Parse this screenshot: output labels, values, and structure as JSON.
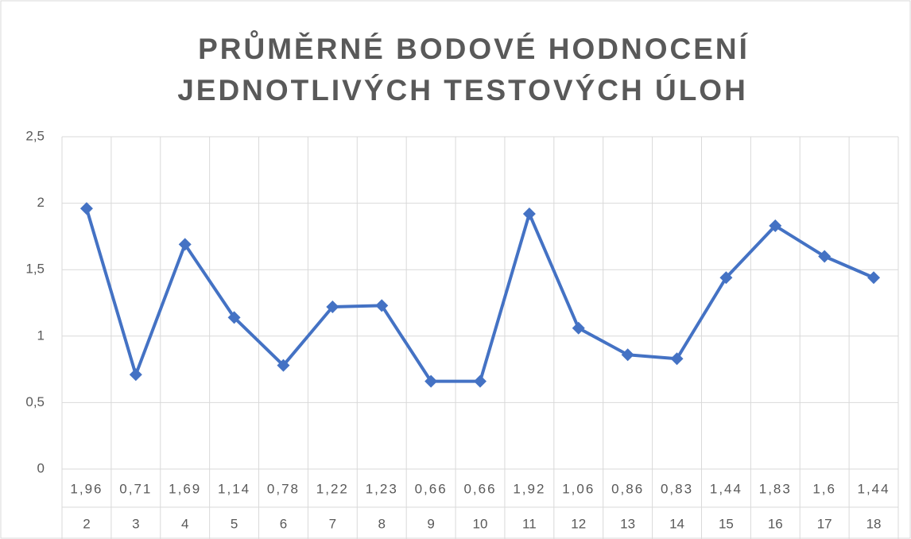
{
  "chart_data": {
    "type": "line",
    "title": [
      "PRŮMĚRNÉ BODOVÉ HODNOCENÍ",
      "JEDNOTLIVÝCH TESTOVÝCH ÚLOH"
    ],
    "categories": [
      "2",
      "3",
      "4",
      "5",
      "6",
      "7",
      "8",
      "9",
      "10",
      "11",
      "12",
      "13",
      "14",
      "15",
      "16",
      "17",
      "18"
    ],
    "series": [
      {
        "color": "#4472c4",
        "values": [
          1.96,
          0.71,
          1.69,
          1.14,
          0.78,
          1.22,
          1.23,
          0.66,
          0.66,
          1.92,
          1.06,
          0.86,
          0.83,
          1.44,
          1.83,
          1.6,
          1.44
        ],
        "value_labels": [
          "1,96",
          "0,71",
          "1,69",
          "1,14",
          "0,78",
          "1,22",
          "1,23",
          "0,66",
          "0,66",
          "1,92",
          "1,06",
          "0,86",
          "0,83",
          "1,44",
          "1,83",
          "1,6",
          "1,44"
        ]
      }
    ],
    "ylim": [
      0,
      2.5
    ],
    "yticks": [
      0,
      {
        "value": 0.5,
        "label": "0,5"
      },
      1,
      {
        "value": 1.5,
        "label": "1,5"
      },
      2,
      {
        "value": 2.5,
        "label": "2,5"
      }
    ],
    "grid": true
  }
}
